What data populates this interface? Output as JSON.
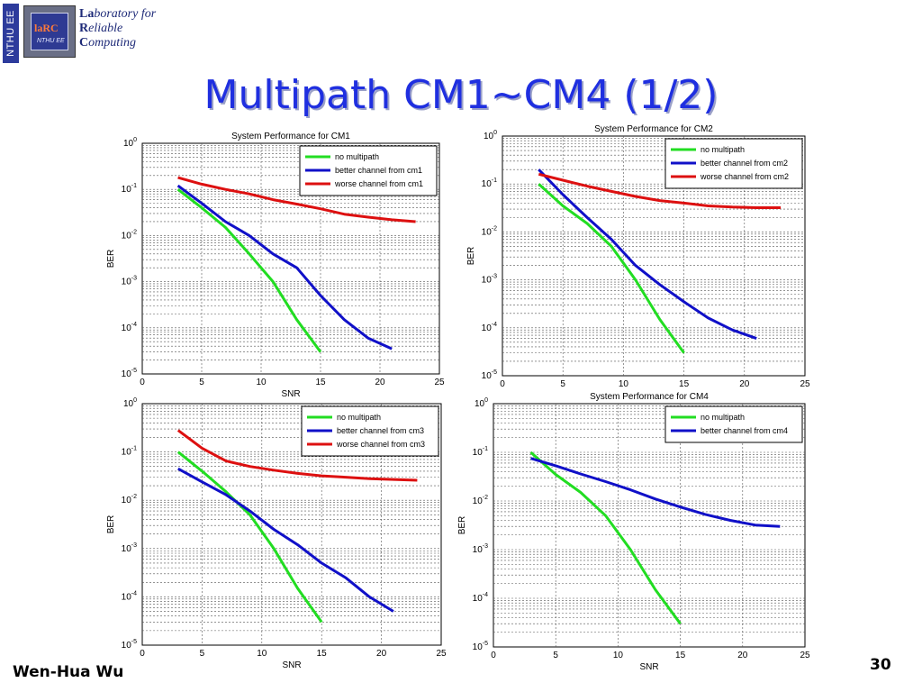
{
  "header": {
    "side_tab": "NTHU EE",
    "logo": {
      "chip_text": "laRC",
      "chip_sub": "NTHU EE"
    },
    "lab_name": [
      {
        "bold": "La",
        "rest": "boratory for"
      },
      {
        "bold": "R",
        "rest": "eliable"
      },
      {
        "bold": "C",
        "rest": "omputing"
      }
    ]
  },
  "slide": {
    "title": "Multipath CM1~CM4 (1/2)",
    "author": "Wen-Hua Wu",
    "page_number": "30"
  },
  "colors": {
    "no_multipath": "#22dd22",
    "better": "#1010c8",
    "worse": "#dd1010",
    "title": "#1f2fe0"
  },
  "chart_data": [
    {
      "type": "line",
      "title": "System Performance for CM1",
      "xlabel": "SNR",
      "ylabel": "BER",
      "xlim": [
        0,
        25
      ],
      "x_ticks": [
        0,
        5,
        10,
        15,
        20,
        25
      ],
      "ylim": [
        1e-05,
        1
      ],
      "yscale": "log",
      "grid": true,
      "legend_position": "top-right",
      "series": [
        {
          "name": "no multipath",
          "color": "#22dd22",
          "x": [
            3,
            5,
            7,
            9,
            11,
            13,
            15
          ],
          "y": [
            0.1,
            0.04,
            0.015,
            0.004,
            0.001,
            0.00015,
            3e-05
          ]
        },
        {
          "name": "better channel from cm1",
          "color": "#1010c8",
          "x": [
            3,
            5,
            7,
            9,
            11,
            13,
            15,
            17,
            19,
            21
          ],
          "y": [
            0.12,
            0.05,
            0.02,
            0.01,
            0.004,
            0.002,
            0.0005,
            0.00015,
            6e-05,
            3.5e-05
          ]
        },
        {
          "name": "worse channel from cm1",
          "color": "#dd1010",
          "x": [
            3,
            5,
            7,
            9,
            11,
            13,
            15,
            17,
            19,
            21,
            23
          ],
          "y": [
            0.18,
            0.13,
            0.1,
            0.08,
            0.06,
            0.048,
            0.038,
            0.029,
            0.025,
            0.022,
            0.02
          ]
        }
      ]
    },
    {
      "type": "line",
      "title": "System Performance for CM2",
      "xlabel": "",
      "ylabel": "BER",
      "xlim": [
        0,
        25
      ],
      "x_ticks": [
        0,
        5,
        10,
        15,
        20,
        25
      ],
      "ylim": [
        1e-05,
        1
      ],
      "yscale": "log",
      "grid": true,
      "legend_position": "top-right",
      "series": [
        {
          "name": "no multipath",
          "color": "#22dd22",
          "x": [
            3,
            5,
            7,
            9,
            11,
            13,
            15
          ],
          "y": [
            0.1,
            0.035,
            0.015,
            0.005,
            0.001,
            0.00015,
            3e-05
          ]
        },
        {
          "name": "better channel from cm2",
          "color": "#1010c8",
          "x": [
            3,
            5,
            7,
            9,
            11,
            13,
            15,
            17,
            19,
            21
          ],
          "y": [
            0.2,
            0.06,
            0.02,
            0.007,
            0.002,
            0.0008,
            0.00035,
            0.00016,
            9e-05,
            6e-05
          ]
        },
        {
          "name": "worse channel from cm2",
          "color": "#dd1010",
          "x": [
            3,
            5,
            7,
            9,
            11,
            13,
            15,
            17,
            19,
            21,
            23
          ],
          "y": [
            0.16,
            0.12,
            0.09,
            0.07,
            0.055,
            0.045,
            0.04,
            0.035,
            0.033,
            0.032,
            0.032
          ]
        }
      ]
    },
    {
      "type": "line",
      "title": "",
      "xlabel": "SNR",
      "ylabel": "BER",
      "xlim": [
        0,
        25
      ],
      "x_ticks": [
        0,
        5,
        10,
        15,
        20,
        25
      ],
      "ylim": [
        1e-05,
        1
      ],
      "yscale": "log",
      "grid": true,
      "legend_position": "top-right",
      "series": [
        {
          "name": "no multipath",
          "color": "#22dd22",
          "x": [
            3,
            5,
            7,
            9,
            11,
            13,
            15
          ],
          "y": [
            0.1,
            0.04,
            0.015,
            0.005,
            0.001,
            0.00015,
            3e-05
          ]
        },
        {
          "name": "better channel from cm3",
          "color": "#1010c8",
          "x": [
            3,
            5,
            7,
            9,
            11,
            13,
            15,
            17,
            19,
            21
          ],
          "y": [
            0.045,
            0.024,
            0.013,
            0.006,
            0.0025,
            0.0012,
            0.0005,
            0.00025,
            0.0001,
            5e-05
          ]
        },
        {
          "name": "worse channel from cm3",
          "color": "#dd1010",
          "x": [
            3,
            5,
            7,
            9,
            11,
            13,
            15,
            17,
            19,
            21,
            23
          ],
          "y": [
            0.28,
            0.12,
            0.065,
            0.05,
            0.042,
            0.036,
            0.032,
            0.03,
            0.028,
            0.027,
            0.026
          ]
        }
      ]
    },
    {
      "type": "line",
      "title": "System Performance for CM4",
      "xlabel": "SNR",
      "ylabel": "BER",
      "xlim": [
        0,
        25
      ],
      "x_ticks": [
        0,
        5,
        10,
        15,
        20,
        25
      ],
      "ylim": [
        1e-05,
        1
      ],
      "yscale": "log",
      "grid": true,
      "legend_position": "top-right",
      "series": [
        {
          "name": "no multipath",
          "color": "#22dd22",
          "x": [
            3,
            5,
            7,
            9,
            11,
            13,
            15
          ],
          "y": [
            0.1,
            0.035,
            0.015,
            0.005,
            0.001,
            0.00015,
            3e-05
          ]
        },
        {
          "name": "better channel from cm4",
          "color": "#1010c8",
          "x": [
            3,
            5,
            7,
            9,
            11,
            13,
            15,
            17,
            19,
            21,
            23
          ],
          "y": [
            0.075,
            0.053,
            0.036,
            0.025,
            0.017,
            0.011,
            0.0075,
            0.0053,
            0.004,
            0.0032,
            0.003
          ]
        }
      ]
    }
  ]
}
